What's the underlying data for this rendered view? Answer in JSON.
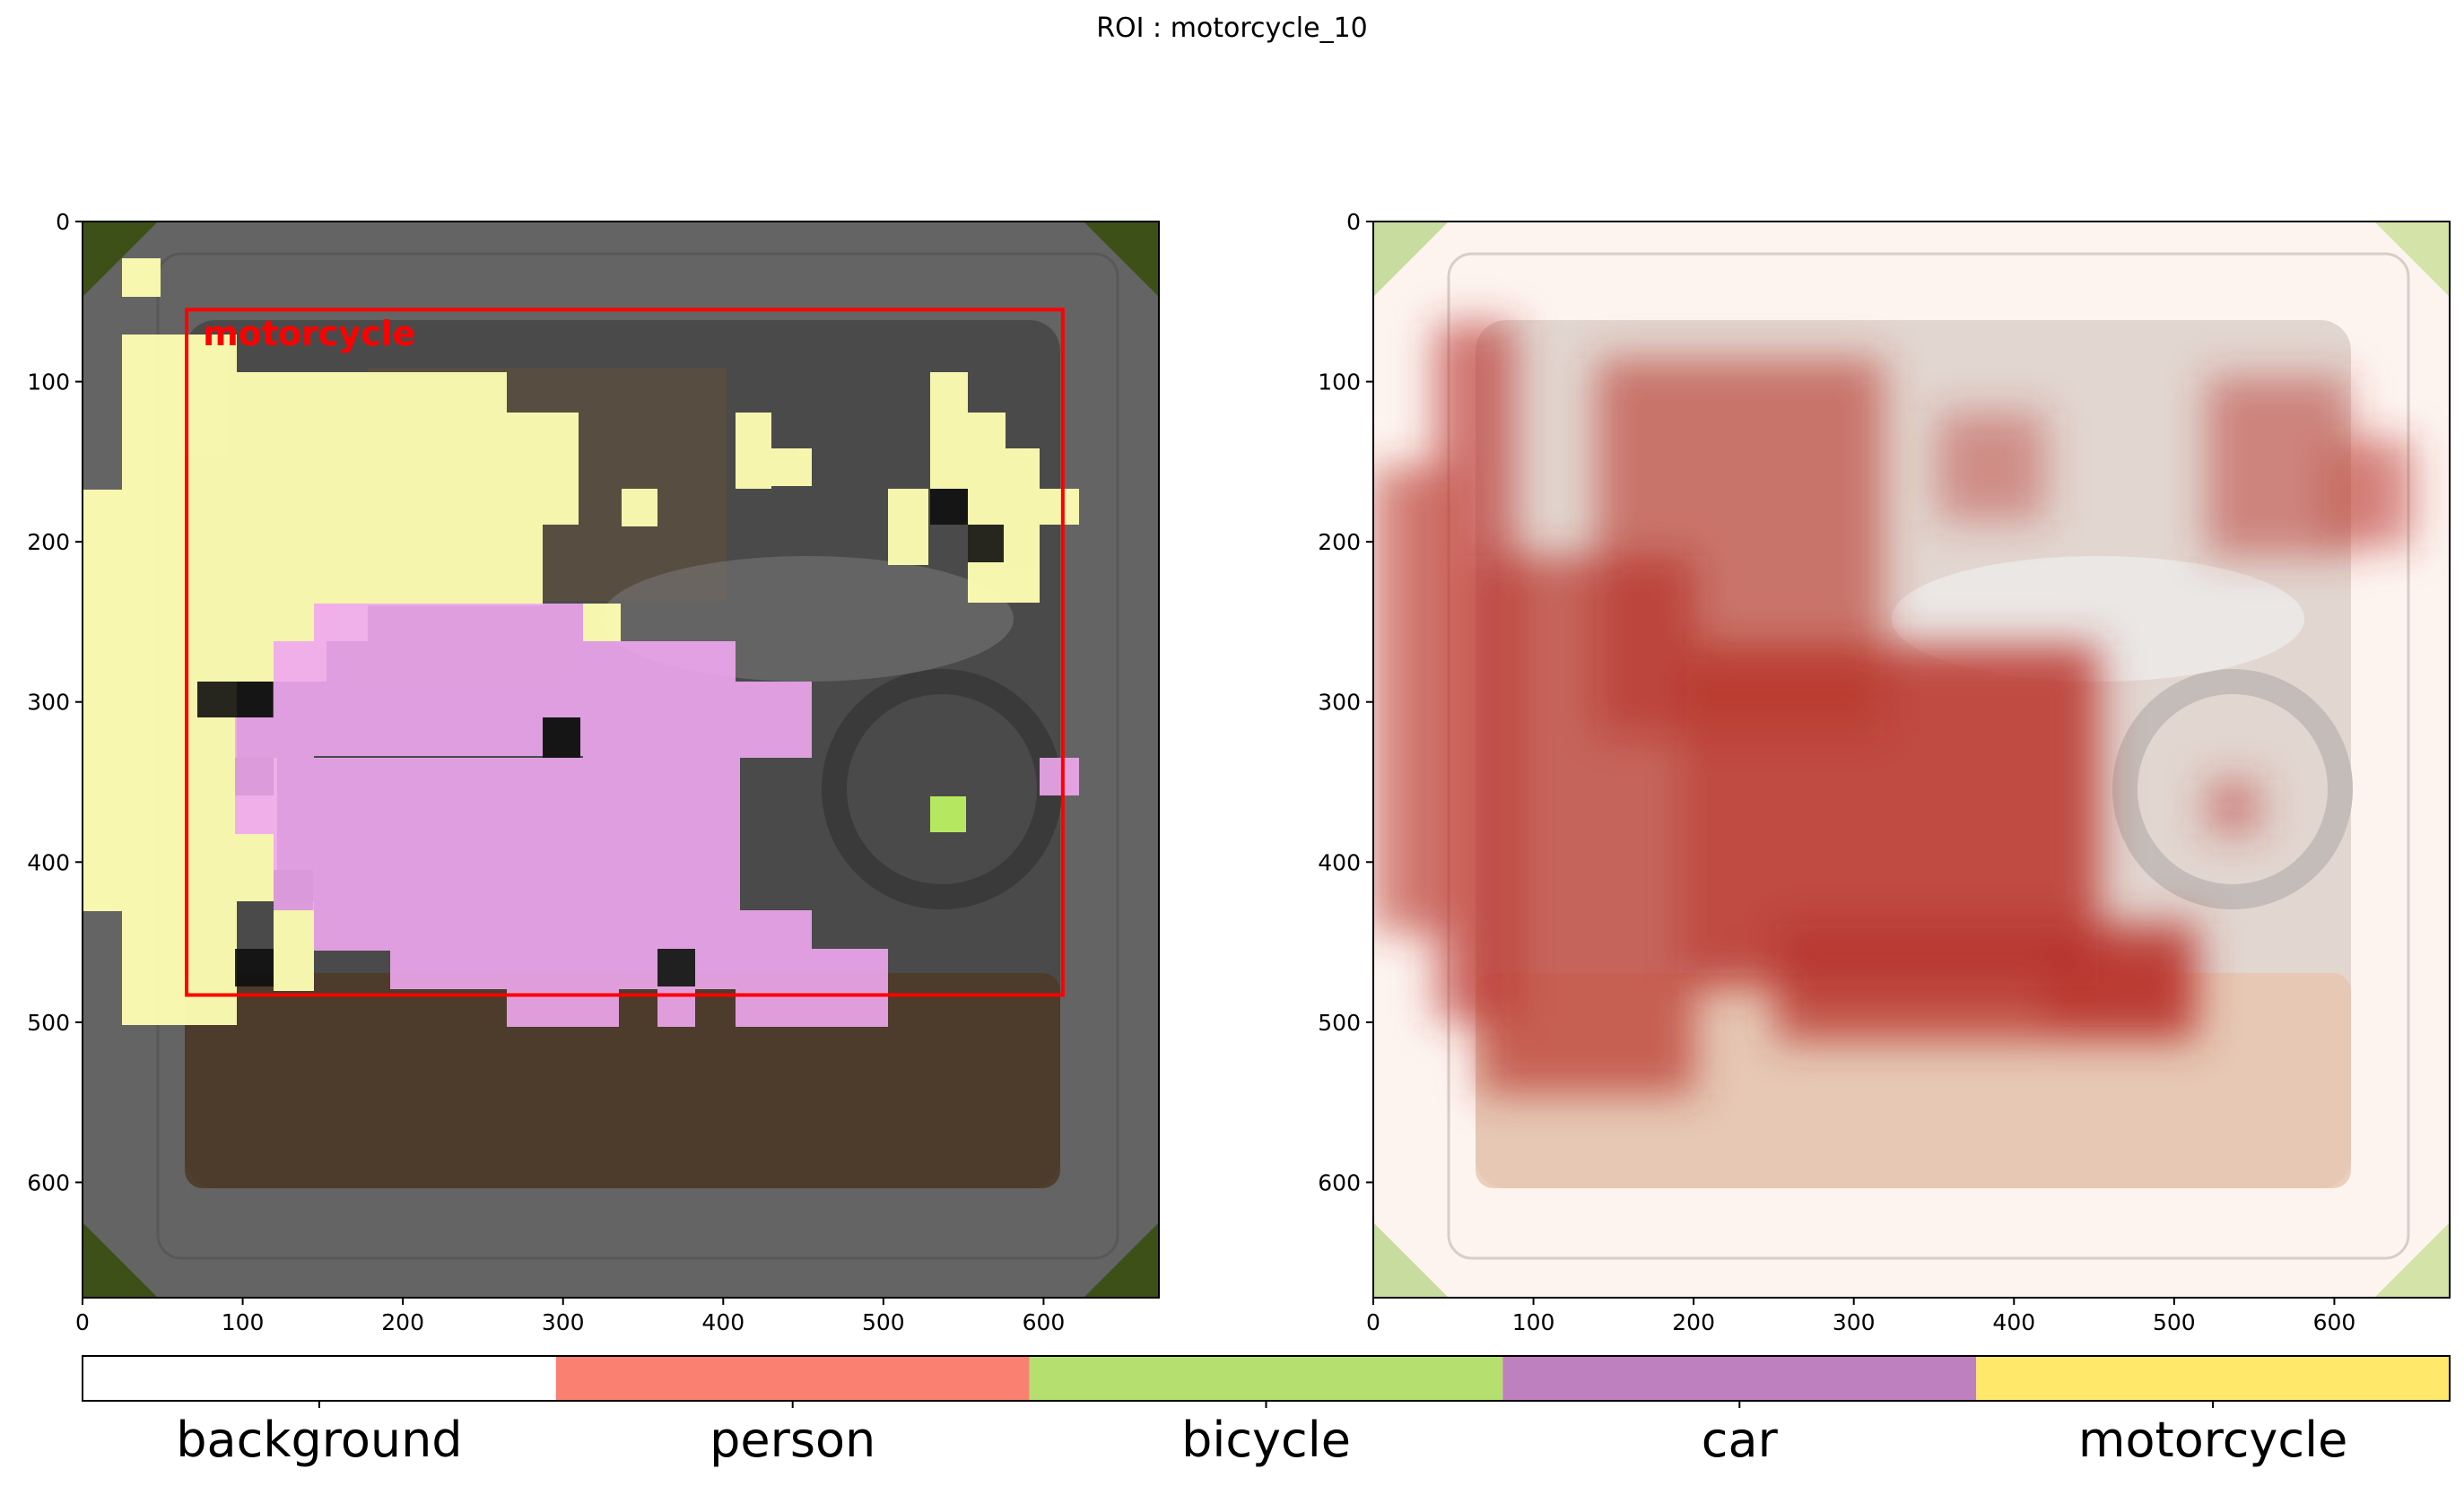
{
  "figure": {
    "suptitle": "ROI : motorcycle_10"
  },
  "chart_data": [
    {
      "type": "heatmap",
      "panel": "left",
      "description_overlay": "segmentation-mask",
      "xlim": [
        0,
        672
      ],
      "ylim": [
        672,
        0
      ],
      "xticks": [
        0,
        100,
        200,
        300,
        400,
        500,
        600
      ],
      "yticks": [
        0,
        100,
        200,
        300,
        400,
        500,
        600
      ],
      "roi_box": {
        "label": "motorcycle",
        "x0": 65,
        "y0": 55,
        "x1": 612,
        "y1": 483,
        "color": "#ff0000"
      }
    },
    {
      "type": "heatmap",
      "panel": "right",
      "description_overlay": "saliency-heatmap",
      "xlim": [
        0,
        672
      ],
      "ylim": [
        672,
        0
      ],
      "xticks": [
        0,
        100,
        200,
        300,
        400,
        500,
        600
      ],
      "yticks": [
        0,
        100,
        200,
        300,
        400,
        500,
        600
      ]
    }
  ],
  "legend": {
    "classes": [
      {
        "label": "background",
        "color": "#ffffff"
      },
      {
        "label": "person",
        "color": "#fa8072"
      },
      {
        "label": "bicycle",
        "color": "#b5df6e"
      },
      {
        "label": "car",
        "color": "#bf80bf"
      },
      {
        "label": "motorcycle",
        "color": "#ffe86a"
      }
    ]
  }
}
